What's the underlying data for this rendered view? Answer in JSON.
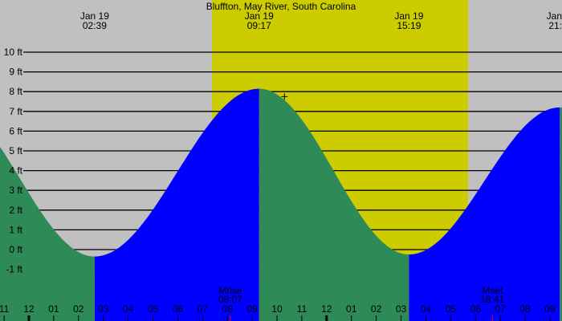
{
  "chart_data": {
    "type": "area",
    "title": "Bluffton, May River, South Carolina",
    "units": "ft",
    "colors": {
      "night": "#c0c0c0",
      "day": "#cccc00",
      "falling": "#2e8b57",
      "rising": "#0000ff",
      "grid": "#000000",
      "moon_tick": "#ff0000"
    },
    "y_ticks": [
      {
        "value": 10,
        "label": "10 ft"
      },
      {
        "value": 9,
        "label": "9 ft"
      },
      {
        "value": 8,
        "label": "8 ft"
      },
      {
        "value": 7,
        "label": "7 ft"
      },
      {
        "value": 6,
        "label": "6 ft"
      },
      {
        "value": 5,
        "label": "5 ft"
      },
      {
        "value": 4,
        "label": "4 ft"
      },
      {
        "value": 3,
        "label": "3 ft"
      },
      {
        "value": 2,
        "label": "2 ft"
      },
      {
        "value": 1,
        "label": "1 ft"
      },
      {
        "value": 0,
        "label": "0 ft"
      },
      {
        "value": -1,
        "label": "-1 ft"
      }
    ],
    "x_hour_labels": [
      "11",
      "12",
      "01",
      "02",
      "03",
      "04",
      "05",
      "06",
      "07",
      "08",
      "09",
      "10",
      "11",
      "12",
      "01",
      "02",
      "03",
      "04",
      "05",
      "06",
      "07",
      "08",
      "09"
    ],
    "x_range_hours": [
      -1.2,
      21.5
    ],
    "extremes": [
      {
        "date": "Jan 19",
        "time": "02:39",
        "hour": 2.65,
        "height": -0.35,
        "type": "low"
      },
      {
        "date": "Jan 19",
        "time": "09:17",
        "hour": 9.28,
        "height": 8.15,
        "type": "high"
      },
      {
        "date": "Jan 19",
        "time": "15:19",
        "hour": 15.32,
        "height": -0.25,
        "type": "low"
      },
      {
        "date": "Jan",
        "time": "21:",
        "hour": 21.4,
        "height": 7.2,
        "type": "high"
      }
    ],
    "daylight_hours": [
      7.38,
      17.7
    ],
    "moon_events": [
      {
        "label": "Mrise",
        "time": "08:07",
        "hour": 8.12
      },
      {
        "label": "Mset",
        "time": "18:41",
        "hour": 18.68
      }
    ],
    "current_marker": {
      "hour": 10.3,
      "height": 7.75
    }
  }
}
